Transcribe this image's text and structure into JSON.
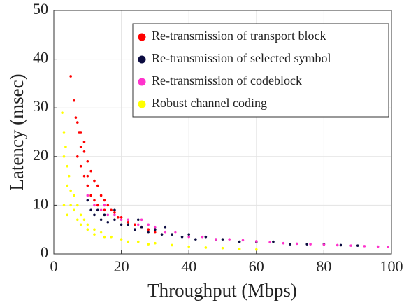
{
  "chart_data": {
    "type": "scatter",
    "xlabel": "Throughput (Mbps)",
    "ylabel": "Latency (msec)",
    "xlim": [
      0,
      100
    ],
    "xticks": [
      0,
      20,
      40,
      60,
      80,
      100
    ],
    "ylim": [
      0,
      50
    ],
    "yticks": [
      0,
      10,
      20,
      30,
      40,
      50
    ],
    "grid": true,
    "legend": "upper right",
    "series": [
      {
        "name": "Re-transmission of transport block",
        "color": "#ff0000",
        "x": [
          5,
          6,
          6.5,
          7,
          7.5,
          8,
          8,
          9,
          9,
          10,
          10,
          11,
          11,
          12,
          12,
          13,
          13,
          14,
          15,
          15,
          16,
          17,
          18,
          19,
          20,
          22,
          24,
          26,
          28,
          30,
          7,
          8,
          9,
          10
        ],
        "values": [
          36.5,
          31.5,
          28,
          27,
          25,
          22,
          18,
          21,
          16,
          19,
          14,
          17,
          12,
          15,
          11,
          14,
          10,
          12,
          11,
          9,
          10,
          9,
          8.5,
          7.5,
          7.5,
          6.5,
          6,
          5.5,
          5,
          4.5,
          20,
          25,
          23,
          16
        ]
      },
      {
        "name": "Re-transmission of selected symbol",
        "color": "#0b0b40",
        "x": [
          10,
          11,
          12,
          13,
          14,
          15,
          16,
          18,
          20,
          22,
          24,
          26,
          28,
          30,
          32,
          35,
          38,
          40,
          42,
          45,
          48,
          50,
          55,
          60,
          65,
          70,
          75,
          80,
          85,
          90,
          18,
          25,
          33
        ],
        "values": [
          11,
          9,
          8,
          9,
          7,
          8,
          6.5,
          7,
          6,
          6,
          5,
          5.5,
          4.5,
          5,
          4,
          4,
          3.5,
          4,
          3,
          3.5,
          3,
          3,
          2.5,
          2.5,
          2.5,
          2,
          2,
          2,
          1.8,
          1.7,
          9,
          7,
          5.5
        ]
      },
      {
        "name": "Re-transmission of codeblock",
        "color": "#ff33cc",
        "x": [
          10,
          12,
          14,
          16,
          18,
          20,
          22,
          25,
          28,
          30,
          33,
          36,
          40,
          44,
          48,
          52,
          56,
          60,
          64,
          68,
          72,
          76,
          80,
          84,
          88,
          92,
          96,
          99,
          15,
          26
        ],
        "values": [
          12,
          10,
          9,
          8,
          8,
          7,
          7,
          6,
          6,
          5.5,
          4.5,
          4.5,
          3.5,
          3.5,
          3,
          3,
          2.8,
          2.6,
          2.4,
          2.2,
          2.1,
          2,
          1.9,
          1.8,
          1.7,
          1.6,
          1.5,
          1.4,
          10,
          7
        ]
      },
      {
        "name": "Robust channel coding",
        "color": "#ffff00",
        "x": [
          2.5,
          3,
          3,
          3.5,
          4,
          4,
          4.5,
          5,
          5,
          6,
          6,
          7,
          7,
          8,
          8,
          9,
          10,
          10,
          12,
          12,
          14,
          15,
          17,
          20,
          22,
          25,
          28,
          30,
          35,
          40,
          45,
          50,
          55,
          60,
          3,
          4
        ],
        "values": [
          29,
          25,
          20,
          22,
          18,
          14,
          16,
          13,
          10,
          12,
          9,
          10,
          7,
          8,
          6,
          7,
          6,
          5,
          5,
          4,
          4.5,
          3.5,
          3.5,
          3,
          2.5,
          2.5,
          2,
          2.2,
          1.8,
          1.5,
          1.3,
          1.2,
          1,
          0.9,
          10,
          8
        ]
      }
    ]
  }
}
